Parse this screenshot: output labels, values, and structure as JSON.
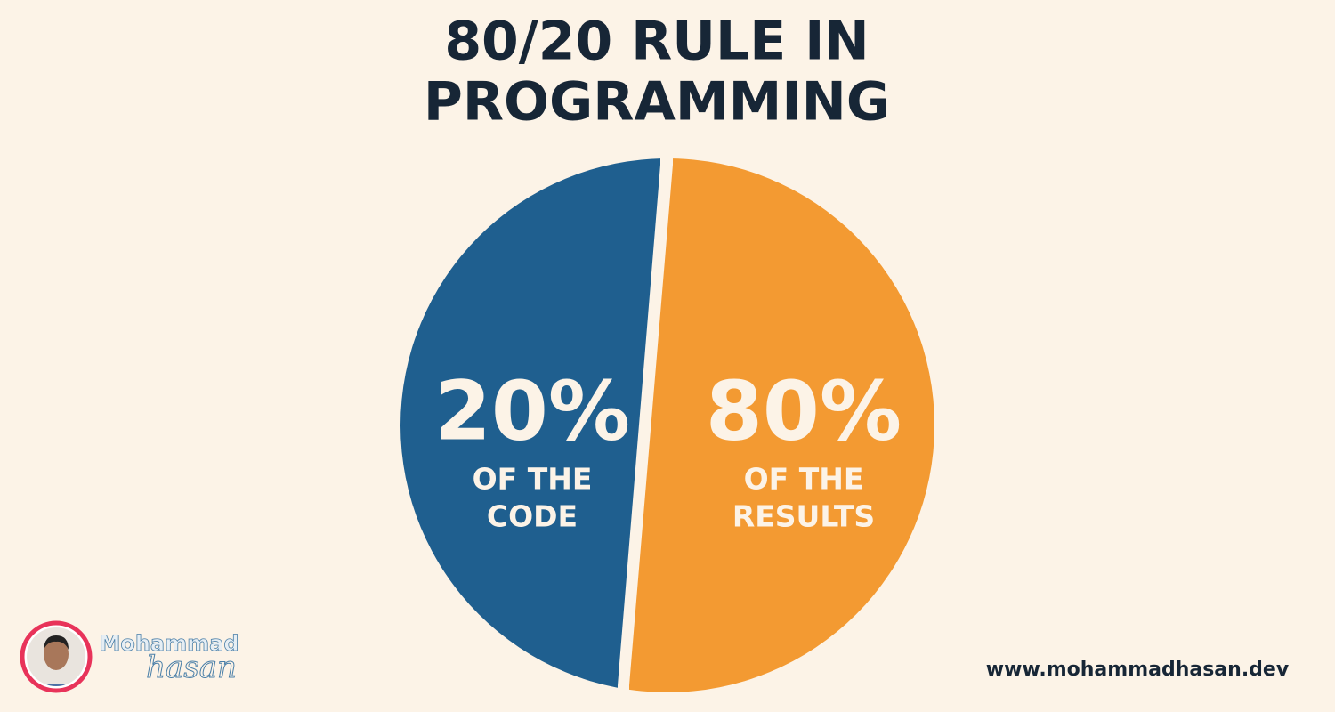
{
  "title": [
    "80/20 RULE IN",
    "PROGRAMMING"
  ],
  "segments": [
    {
      "value": "20%",
      "caption": [
        "OF THE",
        "CODE"
      ]
    },
    {
      "value": "80%",
      "caption": [
        "OF THE",
        "RESULTS"
      ]
    }
  ],
  "author": {
    "first": "Mohammad",
    "last": "hasan"
  },
  "website": "www.mohammadhasan.dev"
}
